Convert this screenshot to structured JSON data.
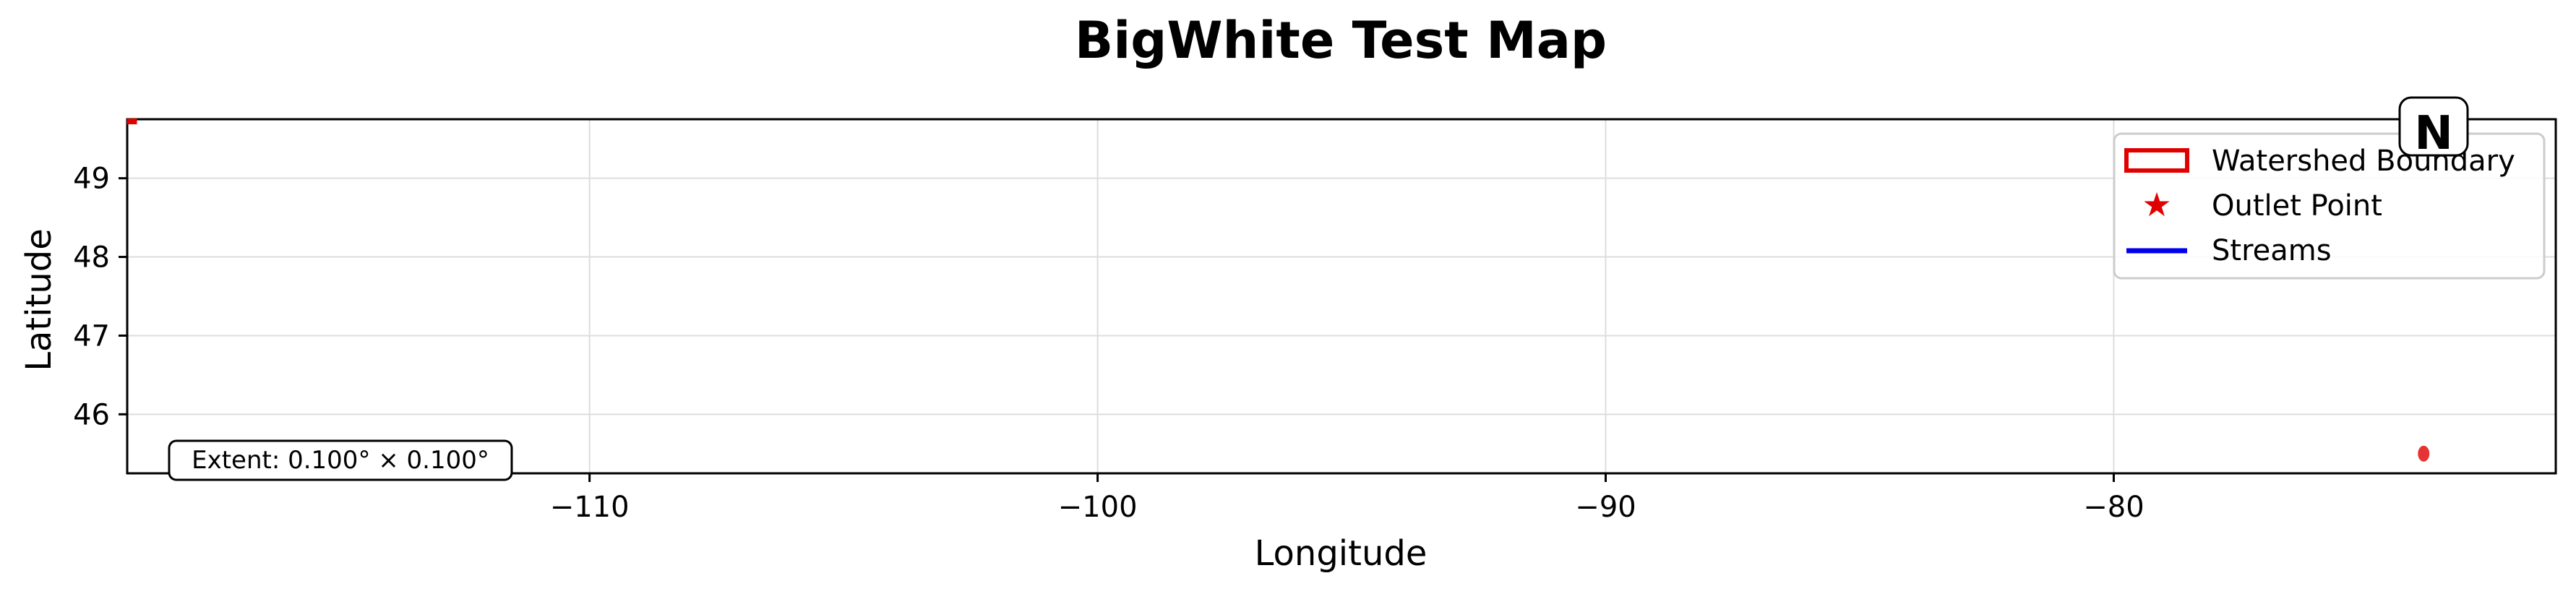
{
  "title": "BigWhite Test Map",
  "colors": {
    "boundary": "#e00000",
    "outlet": "#e00000",
    "streams": "#0000ee",
    "grid": "#dddddd",
    "frame": "#000000"
  },
  "chart_data": {
    "type": "scatter",
    "title": "BigWhite Test Map",
    "xlabel": "Longitude",
    "ylabel": "Latitude",
    "xlim": [
      -119.1,
      -71.3
    ],
    "ylim": [
      45.25,
      49.75
    ],
    "x_ticks": [
      -110,
      -100,
      -90,
      -80
    ],
    "x_tick_labels": [
      "−110",
      "−100",
      "−90",
      "−80"
    ],
    "y_ticks": [
      46,
      47,
      48,
      49
    ],
    "y_tick_labels": [
      "46",
      "47",
      "48",
      "49"
    ],
    "grid": true,
    "legend_position": "top-right",
    "legend": [
      {
        "label": "Watershed Boundary",
        "kind": "boundary"
      },
      {
        "label": "Outlet Point",
        "kind": "outlet"
      },
      {
        "label": "Streams",
        "kind": "streams"
      }
    ],
    "features": [
      {
        "name": "watershed-boundary-marker",
        "lon": -119.05,
        "lat": 49.75
      },
      {
        "name": "outlet-point-marker",
        "lon": -73.9,
        "lat": 45.5
      }
    ],
    "extent_text": "Extent: 0.100° × 0.100°",
    "north_label": "N"
  }
}
